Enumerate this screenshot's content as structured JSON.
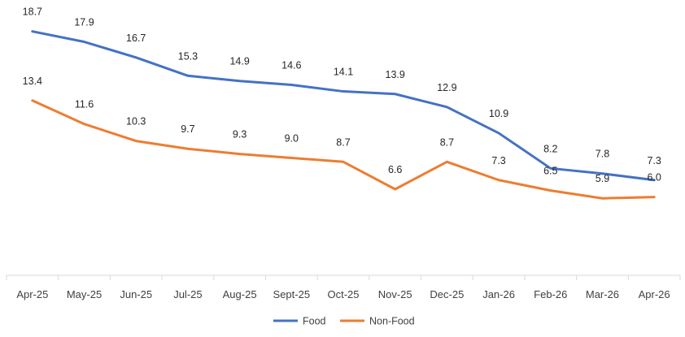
{
  "chart_data": {
    "type": "line",
    "title": "",
    "xlabel": "",
    "ylabel": "",
    "categories": [
      "Apr-25",
      "May-25",
      "Jun-25",
      "Jul-25",
      "Aug-25",
      "Sept-25",
      "Oct-25",
      "Nov-25",
      "Dec-25",
      "Jan-26",
      "Feb-26",
      "Mar-26",
      "Apr-26"
    ],
    "series": [
      {
        "name": "Food",
        "color": "#4472C4",
        "values": [
          18.7,
          17.9,
          16.7,
          15.3,
          14.9,
          14.6,
          14.1,
          13.9,
          12.9,
          10.9,
          8.2,
          7.8,
          7.3
        ]
      },
      {
        "name": "Non-Food",
        "color": "#ED7D31",
        "values": [
          13.4,
          11.6,
          10.3,
          9.7,
          9.3,
          9.0,
          8.7,
          6.6,
          8.7,
          7.3,
          6.5,
          5.9,
          6.0
        ]
      }
    ],
    "ylim": [
      0,
      20
    ],
    "grid": false,
    "legend": "bottom",
    "axis_color": "#D9D9D9"
  }
}
